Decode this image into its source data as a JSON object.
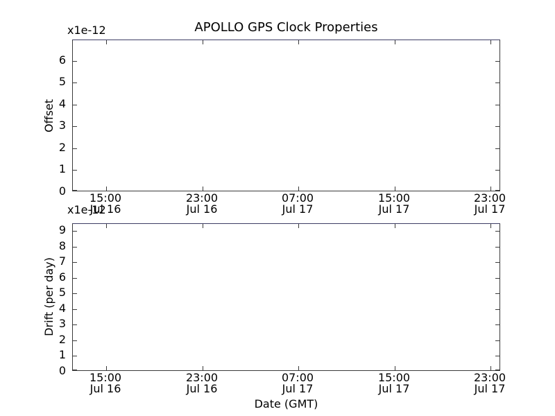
{
  "figure_title": "APOLLO GPS Clock Properties",
  "colors": {
    "background": "#ffffff",
    "spine": "#3a3a3a",
    "spine_top": "#3c3c64",
    "text": "#000000"
  },
  "chart_data": [
    {
      "type": "line",
      "subplot": "top",
      "title": "APOLLO GPS Clock Properties",
      "ylabel": "Offset",
      "y_scale_label": "x1e-12",
      "yticks": [
        0,
        1,
        2,
        3,
        4,
        5,
        6
      ],
      "ylim": [
        0,
        6.95
      ],
      "xtick_labels": [
        [
          "15:00",
          "Jul 16"
        ],
        [
          "23:00",
          "Jul 16"
        ],
        [
          "07:00",
          "Jul 17"
        ],
        [
          "15:00",
          "Jul 17"
        ],
        [
          "23:00",
          "Jul 17"
        ]
      ],
      "xlabel": "",
      "grid": false,
      "legend": null,
      "series": []
    },
    {
      "type": "line",
      "subplot": "bottom",
      "ylabel": "Drift (per day)",
      "y_scale_label": "x1e-12",
      "yticks": [
        0,
        1,
        2,
        3,
        4,
        5,
        6,
        7,
        8,
        9
      ],
      "ylim": [
        0,
        9.45
      ],
      "xtick_labels": [
        [
          "15:00",
          "Jul 16"
        ],
        [
          "23:00",
          "Jul 16"
        ],
        [
          "07:00",
          "Jul 17"
        ],
        [
          "15:00",
          "Jul 17"
        ],
        [
          "23:00",
          "Jul 17"
        ]
      ],
      "xlabel": "Date (GMT)",
      "grid": false,
      "legend": null,
      "series": []
    }
  ]
}
